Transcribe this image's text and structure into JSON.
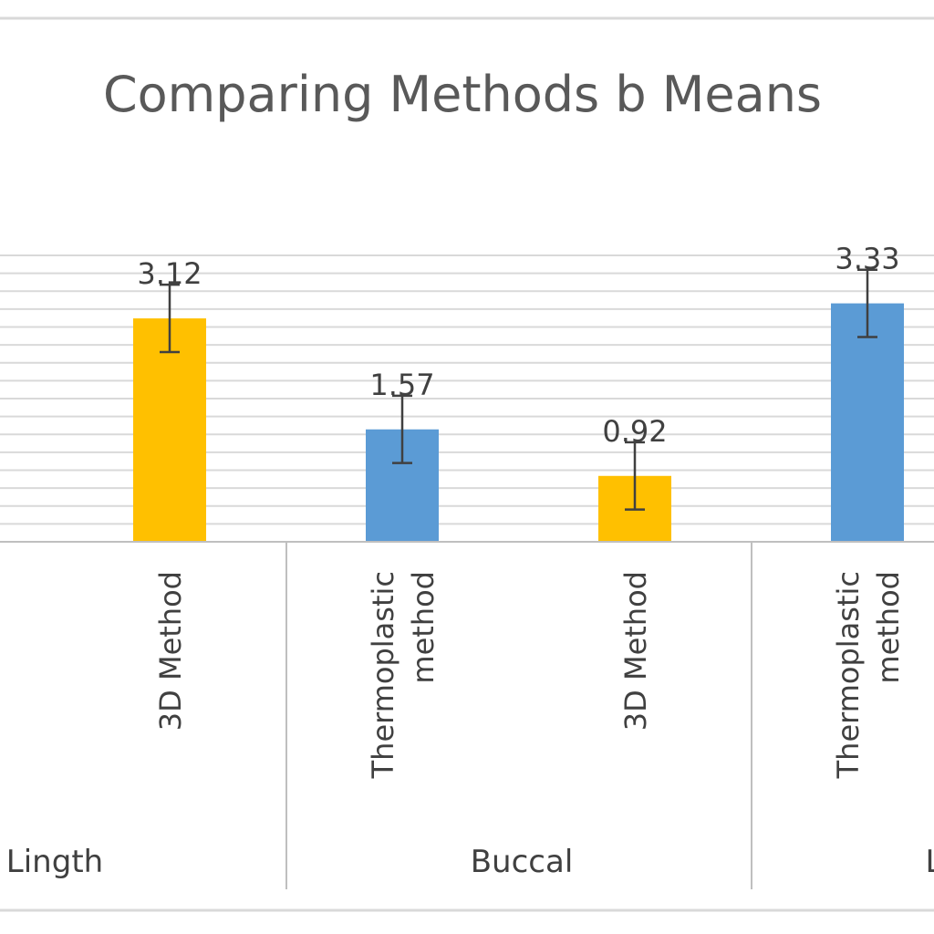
{
  "chart_data": {
    "type": "bar",
    "title": "Comparing Methods b Means",
    "xlabel": "",
    "ylabel": "",
    "ylim": [
      0,
      4
    ],
    "grid": true,
    "gridline_step": 0.25,
    "legend": "none",
    "groups": [
      "Lingth",
      "Buccal",
      "L"
    ],
    "categories": [
      {
        "group": "Lingth",
        "label": "3D  Method"
      },
      {
        "group": "Buccal",
        "label": "Thermoplastic\nmethod"
      },
      {
        "group": "Buccal",
        "label": "3D  Method"
      },
      {
        "group": "L",
        "label": "Thermoplastic\nmethod"
      }
    ],
    "series": [
      {
        "values": [
          3.12,
          1.57,
          0.92,
          3.33
        ],
        "data_labels": [
          "3.12",
          "1.57",
          "0.92",
          "3.33"
        ],
        "error": [
          0.47,
          0.47,
          0.47,
          0.47
        ]
      }
    ],
    "bar_colors": [
      "#FFC000",
      "#5B9BD5",
      "#FFC000",
      "#5B9BD5"
    ],
    "colors": {
      "error_bar": "#404040",
      "gridline": "#D9D9D9",
      "axis": "#BFBFBF",
      "title": "#595959",
      "text": "#404040"
    }
  }
}
